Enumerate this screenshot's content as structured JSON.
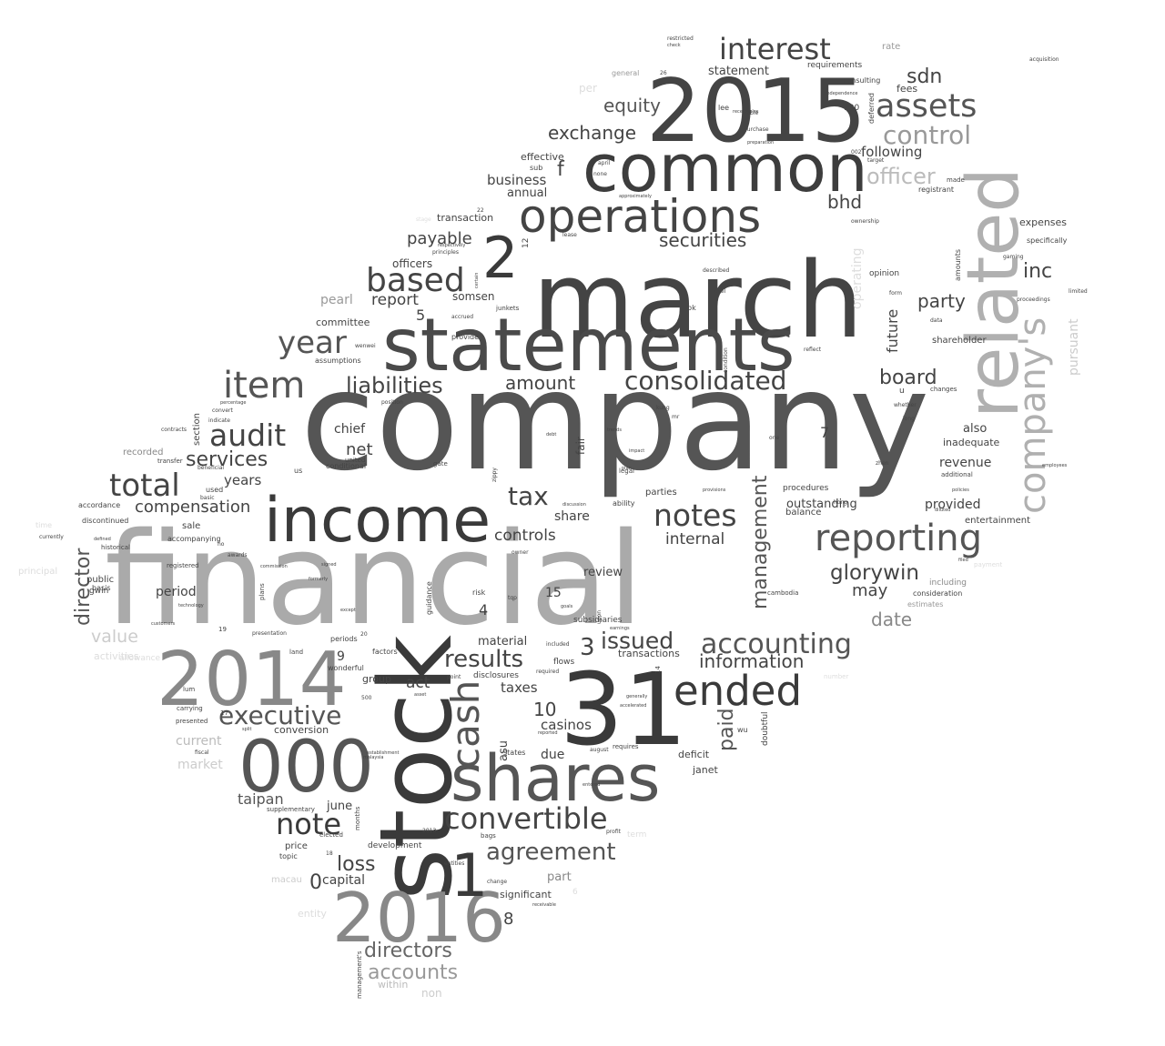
{
  "words": [
    {
      "text": "company",
      "color": "#555555"
    },
    {
      "text": "financial",
      "color": "#aaaaaa"
    },
    {
      "text": "march",
      "color": "#444444"
    },
    {
      "text": "statements",
      "color": "#4a4a4a"
    },
    {
      "text": "stock",
      "color": "#3a3a3a"
    },
    {
      "text": "2015",
      "color": "#444444"
    },
    {
      "text": "common",
      "color": "#3d3d3d"
    },
    {
      "text": "31",
      "color": "#3a3a3a"
    },
    {
      "text": "related",
      "color": "#b0b0b0"
    },
    {
      "text": "000",
      "color": "#555555"
    },
    {
      "text": "2014",
      "color": "#888888"
    },
    {
      "text": "2016",
      "color": "#888888"
    },
    {
      "text": "shares",
      "color": "#555555"
    },
    {
      "text": "income",
      "color": "#3a3a3a"
    },
    {
      "text": "operations",
      "color": "#444444"
    },
    {
      "text": "company's",
      "color": "#b0b0b0"
    },
    {
      "text": "1",
      "color": "#3a3a3a"
    },
    {
      "text": "2",
      "color": "#3a3a3a"
    },
    {
      "text": "cash",
      "color": "#555555"
    },
    {
      "text": "ended",
      "color": "#3a3a3a"
    },
    {
      "text": "reporting",
      "color": "#555555"
    },
    {
      "text": "interest",
      "color": "#444444"
    },
    {
      "text": "assets",
      "color": "#555555"
    },
    {
      "text": "item",
      "color": "#555555"
    },
    {
      "text": "based",
      "color": "#444444"
    },
    {
      "text": "year",
      "color": "#555555"
    },
    {
      "text": "audit",
      "color": "#444444"
    },
    {
      "text": "total",
      "color": "#444444"
    },
    {
      "text": "notes",
      "color": "#444444"
    },
    {
      "text": "accounting",
      "color": "#555555"
    },
    {
      "text": "consolidated",
      "color": "#444444"
    },
    {
      "text": "convertible",
      "color": "#444444"
    },
    {
      "text": "executive",
      "color": "#555555"
    },
    {
      "text": "note",
      "color": "#3a3a3a"
    },
    {
      "text": "agreement",
      "color": "#555555"
    },
    {
      "text": "liabilities",
      "color": "#444444"
    },
    {
      "text": "control",
      "color": "#999999"
    },
    {
      "text": "tax",
      "color": "#444444"
    },
    {
      "text": "results",
      "color": "#444444"
    },
    {
      "text": "glorywin",
      "color": "#444444"
    },
    {
      "text": "board",
      "color": "#444444"
    },
    {
      "text": "officer",
      "color": "#bbbbbb"
    },
    {
      "text": "securities",
      "color": "#444444"
    },
    {
      "text": "exchange",
      "color": "#444444"
    },
    {
      "text": "equity",
      "color": "#555555"
    },
    {
      "text": "amount",
      "color": "#444444"
    },
    {
      "text": "directors",
      "color": "#666666"
    },
    {
      "text": "accounts",
      "color": "#999999"
    },
    {
      "text": "director",
      "color": "#555555"
    },
    {
      "text": "management",
      "color": "#555555"
    },
    {
      "text": "information",
      "color": "#444444"
    },
    {
      "text": "issued",
      "color": "#444444"
    },
    {
      "text": "services",
      "color": "#444444"
    },
    {
      "text": "compensation",
      "color": "#444444"
    },
    {
      "text": "loss",
      "color": "#444444"
    },
    {
      "text": "paid",
      "color": "#555555"
    },
    {
      "text": "inc",
      "color": "#444444"
    },
    {
      "text": "sdn",
      "color": "#444444"
    },
    {
      "text": "bhd",
      "color": "#444444"
    },
    {
      "text": "party",
      "color": "#444444"
    },
    {
      "text": "net",
      "color": "#444444"
    },
    {
      "text": "may",
      "color": "#444444"
    },
    {
      "text": "date",
      "color": "#888888"
    },
    {
      "text": "internal",
      "color": "#444444"
    },
    {
      "text": "controls",
      "color": "#444444"
    },
    {
      "text": "payable",
      "color": "#444444"
    },
    {
      "text": "report",
      "color": "#444444"
    },
    {
      "text": "years",
      "color": "#444444"
    },
    {
      "text": "chief",
      "color": "#444444"
    },
    {
      "text": "future",
      "color": "#444444"
    },
    {
      "text": "revenue",
      "color": "#444444"
    },
    {
      "text": "provided",
      "color": "#444444"
    },
    {
      "text": "outstanding",
      "color": "#444444"
    },
    {
      "text": "casinos",
      "color": "#444444"
    },
    {
      "text": "taxes",
      "color": "#444444"
    },
    {
      "text": "act",
      "color": "#444444"
    },
    {
      "text": "value",
      "color": "#cccccc"
    },
    {
      "text": "period",
      "color": "#444444"
    },
    {
      "text": "taipan",
      "color": "#555555"
    },
    {
      "text": "capital",
      "color": "#444444"
    },
    {
      "text": "pearl",
      "color": "#999999"
    },
    {
      "text": "somsen",
      "color": "#444444"
    },
    {
      "text": "share",
      "color": "#444444"
    },
    {
      "text": "review",
      "color": "#444444"
    },
    {
      "text": "due",
      "color": "#444444"
    },
    {
      "text": "material",
      "color": "#444444"
    },
    {
      "text": "following",
      "color": "#444444"
    },
    {
      "text": "business",
      "color": "#444444"
    },
    {
      "text": "statement",
      "color": "#444444"
    },
    {
      "text": "officers",
      "color": "#444444"
    },
    {
      "text": "committee",
      "color": "#444444"
    },
    {
      "text": "current",
      "color": "#bbbbbb"
    },
    {
      "text": "market",
      "color": "#cccccc"
    },
    {
      "text": "pursuant",
      "color": "#cccccc"
    },
    {
      "text": "operating",
      "color": "#dddddd"
    },
    {
      "text": "expenses",
      "color": "#444444"
    },
    {
      "text": "fees",
      "color": "#444444"
    },
    {
      "text": "also",
      "color": "#444444"
    },
    {
      "text": "inadequate",
      "color": "#444444"
    },
    {
      "text": "shareholder",
      "color": "#444444"
    },
    {
      "text": "entertainment",
      "color": "#444444"
    },
    {
      "text": "transaction",
      "color": "#444444"
    },
    {
      "text": "annual",
      "color": "#444444"
    },
    {
      "text": "effective",
      "color": "#444444"
    },
    {
      "text": "f",
      "color": "#444444"
    },
    {
      "text": "3",
      "color": "#444444"
    },
    {
      "text": "4",
      "color": "#444444"
    },
    {
      "text": "5",
      "color": "#444444"
    },
    {
      "text": "7",
      "color": "#444444"
    },
    {
      "text": "8",
      "color": "#444444"
    },
    {
      "text": "9",
      "color": "#444444"
    },
    {
      "text": "10",
      "color": "#444444"
    },
    {
      "text": "15",
      "color": "#444444"
    },
    {
      "text": "0",
      "color": "#444444"
    },
    {
      "text": "part",
      "color": "#888888"
    },
    {
      "text": "significant",
      "color": "#444444"
    },
    {
      "text": "june",
      "color": "#444444"
    },
    {
      "text": "group",
      "color": "#444444"
    },
    {
      "text": "conversion",
      "color": "#444444"
    },
    {
      "text": "deficit",
      "color": "#444444"
    },
    {
      "text": "janet",
      "color": "#444444"
    },
    {
      "text": "transactions",
      "color": "#444444"
    },
    {
      "text": "disclosures",
      "color": "#444444"
    },
    {
      "text": "parties",
      "color": "#444444"
    },
    {
      "text": "balance",
      "color": "#444444"
    },
    {
      "text": "procedures",
      "color": "#444444"
    },
    {
      "text": "subsidiaries",
      "color": "#444444"
    },
    {
      "text": "price",
      "color": "#444444"
    },
    {
      "text": "development",
      "color": "#444444"
    },
    {
      "text": "within",
      "color": "#bbbbbb"
    },
    {
      "text": "non",
      "color": "#cccccc"
    },
    {
      "text": "discontinued",
      "color": "#444444"
    },
    {
      "text": "recorded",
      "color": "#888888"
    },
    {
      "text": "accordance",
      "color": "#444444"
    },
    {
      "text": "public",
      "color": "#444444"
    },
    {
      "text": "gwin",
      "color": "#444444"
    },
    {
      "text": "sale",
      "color": "#444444"
    },
    {
      "text": "requirements",
      "color": "#444444"
    },
    {
      "text": "consulting",
      "color": "#444444"
    },
    {
      "text": "rate",
      "color": "#999999"
    },
    {
      "text": "specifically",
      "color": "#444444"
    },
    {
      "text": "opinion",
      "color": "#444444"
    },
    {
      "text": "assumptions",
      "color": "#444444"
    },
    {
      "text": "fair",
      "color": "#444444"
    },
    {
      "text": "accompanying",
      "color": "#444444"
    },
    {
      "text": "historical",
      "color": "#444444"
    },
    {
      "text": "plans",
      "color": "#444444"
    },
    {
      "text": "conditional",
      "color": "#444444"
    },
    {
      "text": "periods",
      "color": "#444444"
    },
    {
      "text": "wonderful",
      "color": "#444444"
    },
    {
      "text": "risk",
      "color": "#444444"
    },
    {
      "text": "cambodia",
      "color": "#444444"
    },
    {
      "text": "consideration",
      "color": "#444444"
    },
    {
      "text": "including",
      "color": "#888888"
    },
    {
      "text": "estimates",
      "color": "#999999"
    },
    {
      "text": "additional",
      "color": "#444444"
    },
    {
      "text": "changes",
      "color": "#444444"
    },
    {
      "text": "position",
      "color": "#444444"
    },
    {
      "text": "guidance",
      "color": "#444444"
    },
    {
      "text": "supplementary",
      "color": "#444444"
    },
    {
      "text": "management's",
      "color": "#444444"
    },
    {
      "text": "approximately",
      "color": "#444444"
    },
    {
      "text": "registrant",
      "color": "#444444"
    },
    {
      "text": "whether",
      "color": "#444444"
    },
    {
      "text": "presented",
      "color": "#444444"
    },
    {
      "text": "acquisition",
      "color": "#444444"
    },
    {
      "text": "independence",
      "color": "#444444"
    },
    {
      "text": "purchase",
      "color": "#444444"
    },
    {
      "text": "preparation",
      "color": "#444444"
    },
    {
      "text": "one",
      "color": "#444444"
    },
    {
      "text": "level",
      "color": "#444444"
    },
    {
      "text": "junkets",
      "color": "#444444"
    },
    {
      "text": "accrued",
      "color": "#444444"
    },
    {
      "text": "provide",
      "color": "#444444"
    },
    {
      "text": "condition",
      "color": "#444444"
    },
    {
      "text": "section",
      "color": "#444444"
    },
    {
      "text": "indicate",
      "color": "#444444"
    },
    {
      "text": "convert",
      "color": "#444444"
    },
    {
      "text": "percentage",
      "color": "#444444"
    },
    {
      "text": "contracts",
      "color": "#444444"
    },
    {
      "text": "transfer",
      "color": "#444444"
    },
    {
      "text": "beneficial",
      "color": "#444444"
    },
    {
      "text": "used",
      "color": "#444444"
    },
    {
      "text": "basic",
      "color": "#444444"
    },
    {
      "text": "awards",
      "color": "#444444"
    },
    {
      "text": "registered",
      "color": "#444444"
    },
    {
      "text": "basis",
      "color": "#444444"
    },
    {
      "text": "technology",
      "color": "#444444"
    },
    {
      "text": "customers",
      "color": "#444444"
    },
    {
      "text": "presentation",
      "color": "#444444"
    },
    {
      "text": "land",
      "color": "#444444"
    },
    {
      "text": "carrying",
      "color": "#444444"
    },
    {
      "text": "fiscal",
      "color": "#444444"
    },
    {
      "text": "elected",
      "color": "#444444"
    },
    {
      "text": "topic",
      "color": "#444444"
    },
    {
      "text": "macau",
      "color": "#cccccc"
    },
    {
      "text": "entity",
      "color": "#dddddd"
    },
    {
      "text": "months",
      "color": "#444444"
    },
    {
      "text": "bags",
      "color": "#444444"
    },
    {
      "text": "entities",
      "color": "#444444"
    },
    {
      "text": "change",
      "color": "#444444"
    },
    {
      "text": "entered",
      "color": "#444444"
    },
    {
      "text": "august",
      "color": "#444444"
    },
    {
      "text": "requires",
      "color": "#444444"
    },
    {
      "text": "states",
      "color": "#444444"
    },
    {
      "text": "flows",
      "color": "#444444"
    },
    {
      "text": "factors",
      "color": "#444444"
    },
    {
      "text": "accelerated",
      "color": "#444444"
    },
    {
      "text": "generally",
      "color": "#444444"
    },
    {
      "text": "point",
      "color": "#444444"
    },
    {
      "text": "asset",
      "color": "#444444"
    },
    {
      "text": "ability",
      "color": "#444444"
    },
    {
      "text": "discussion",
      "color": "#444444"
    },
    {
      "text": "legal",
      "color": "#444444"
    },
    {
      "text": "united",
      "color": "#444444"
    },
    {
      "text": "gate",
      "color": "#444444"
    },
    {
      "text": "us",
      "color": "#444444"
    },
    {
      "text": "lee",
      "color": "#444444"
    },
    {
      "text": "table",
      "color": "#444444"
    },
    {
      "text": "general",
      "color": "#999999"
    },
    {
      "text": "sub",
      "color": "#444444"
    },
    {
      "text": "april",
      "color": "#444444"
    },
    {
      "text": "none",
      "color": "#444444"
    },
    {
      "text": "target",
      "color": "#444444"
    },
    {
      "text": "made",
      "color": "#444444"
    },
    {
      "text": "amounts",
      "color": "#444444"
    },
    {
      "text": "gaming",
      "color": "#444444"
    },
    {
      "text": "form",
      "color": "#444444"
    },
    {
      "text": "reflect",
      "color": "#444444"
    },
    {
      "text": "data",
      "color": "#444444"
    },
    {
      "text": "long",
      "color": "#444444"
    },
    {
      "text": "zhen",
      "color": "#444444"
    },
    {
      "text": "hong",
      "color": "#444444"
    },
    {
      "text": "kung",
      "color": "#444444"
    },
    {
      "text": "upon",
      "color": "#444444"
    },
    {
      "text": "doubtful",
      "color": "#444444"
    },
    {
      "text": "provisions",
      "color": "#444444"
    },
    {
      "text": "wu",
      "color": "#444444"
    },
    {
      "text": "bk",
      "color": "#444444"
    },
    {
      "text": "mr",
      "color": "#444444"
    },
    {
      "text": "u",
      "color": "#444444"
    },
    {
      "text": "malaysia",
      "color": "#444444"
    },
    {
      "text": "principal",
      "color": "#dddddd"
    },
    {
      "text": "time",
      "color": "#dddddd"
    },
    {
      "text": "currently",
      "color": "#444444"
    },
    {
      "text": "defined",
      "color": "#444444"
    },
    {
      "text": "asu",
      "color": "#444444"
    },
    {
      "text": "tqp",
      "color": "#444444"
    },
    {
      "text": "owner",
      "color": "#444444"
    },
    {
      "text": "described",
      "color": "#444444"
    },
    {
      "text": "certain",
      "color": "#444444"
    },
    {
      "text": "respectively",
      "color": "#444444"
    },
    {
      "text": "principles",
      "color": "#444444"
    },
    {
      "text": "lease",
      "color": "#444444"
    },
    {
      "text": "22",
      "color": "#444444"
    },
    {
      "text": "12",
      "color": "#444444"
    },
    {
      "text": "14",
      "color": "#444444"
    },
    {
      "text": "17",
      "color": "#444444"
    },
    {
      "text": "18",
      "color": "#444444"
    },
    {
      "text": "19",
      "color": "#444444"
    },
    {
      "text": "20",
      "color": "#444444"
    },
    {
      "text": "26",
      "color": "#444444"
    },
    {
      "text": "100",
      "color": "#444444"
    },
    {
      "text": "500",
      "color": "#444444"
    },
    {
      "text": "002",
      "color": "#444444"
    },
    {
      "text": "2013",
      "color": "#444444"
    },
    {
      "text": "deferred",
      "color": "#444444"
    },
    {
      "text": "restricted",
      "color": "#444444"
    },
    {
      "text": "check",
      "color": "#444444"
    },
    {
      "text": "limited",
      "color": "#444444"
    },
    {
      "text": "proceedings",
      "color": "#444444"
    },
    {
      "text": "employees",
      "color": "#444444"
    },
    {
      "text": "policies",
      "color": "#444444"
    },
    {
      "text": "diluted",
      "color": "#444444"
    },
    {
      "text": "filed",
      "color": "#444444"
    },
    {
      "text": "commission",
      "color": "#444444"
    },
    {
      "text": "signed",
      "color": "#444444"
    },
    {
      "text": "formerly",
      "color": "#444444"
    },
    {
      "text": "except",
      "color": "#444444"
    },
    {
      "text": "required",
      "color": "#444444"
    },
    {
      "text": "included",
      "color": "#444444"
    },
    {
      "text": "reported",
      "color": "#444444"
    },
    {
      "text": "establishment",
      "color": "#444444"
    },
    {
      "text": "profit",
      "color": "#444444"
    },
    {
      "text": "receivable",
      "color": "#444444"
    },
    {
      "text": "receivables",
      "color": "#444444"
    },
    {
      "text": "earnings",
      "color": "#444444"
    },
    {
      "text": "goals",
      "color": "#444444"
    },
    {
      "text": "plan",
      "color": "#444444"
    },
    {
      "text": "impact",
      "color": "#444444"
    },
    {
      "text": "trends",
      "color": "#444444"
    },
    {
      "text": "debt",
      "color": "#444444"
    },
    {
      "text": "lum",
      "color": "#444444"
    },
    {
      "text": "split",
      "color": "#444444"
    },
    {
      "text": "ho",
      "color": "#444444"
    },
    {
      "text": "wenwei",
      "color": "#444444"
    },
    {
      "text": "zippy",
      "color": "#444444"
    },
    {
      "text": "per",
      "color": "#dddddd"
    },
    {
      "text": "ownership",
      "color": "#444444"
    },
    {
      "text": "payment",
      "color": "#dddddd"
    },
    {
      "text": "allowance",
      "color": "#dddddd"
    },
    {
      "text": "activities",
      "color": "#dddddd"
    },
    {
      "text": "number",
      "color": "#dddddd"
    },
    {
      "text": "term",
      "color": "#dddddd"
    },
    {
      "text": "stage",
      "color": "#dddddd"
    },
    {
      "text": "6",
      "color": "#dddddd"
    }
  ]
}
